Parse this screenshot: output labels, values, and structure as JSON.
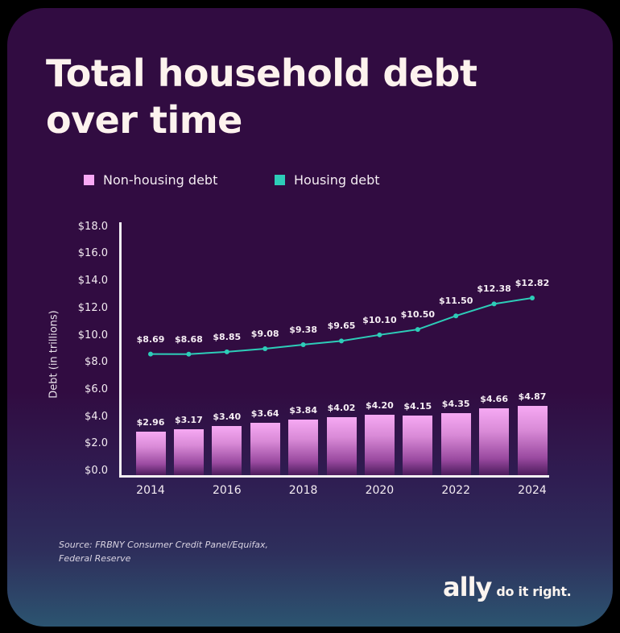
{
  "title_lines": [
    "Total household debt",
    "over time"
  ],
  "legend": [
    {
      "label": "Non-housing debt",
      "color": "#f8a9f4"
    },
    {
      "label": "Housing debt",
      "color": "#2dcdb8"
    }
  ],
  "y_axis_label": "Debt (in trillions)",
  "source_lines": [
    "Source: FRBNY Consumer Credit Panel/Equifax,",
    "Federal Reserve"
  ],
  "logo": {
    "brand": "ally",
    "tagline": "do it right."
  },
  "chart_data": {
    "type": "bar",
    "title": "Total household debt over time",
    "xlabel": "",
    "ylabel": "Debt (in trillions)",
    "ylim": [
      0,
      18
    ],
    "yticks": [
      "$0.0",
      "$2.0",
      "$4.0",
      "$6.0",
      "$8.0",
      "$10.0",
      "$12.0",
      "$14.0",
      "$16.0",
      "$18.0"
    ],
    "xticks": [
      "2014",
      "2016",
      "2018",
      "2020",
      "2022",
      "2024"
    ],
    "categories": [
      "2014",
      "2015",
      "2016",
      "2017",
      "2018",
      "2019",
      "2020",
      "2021",
      "2022",
      "2023",
      "2024"
    ],
    "grid": false,
    "legend_position": "top",
    "series": [
      {
        "name": "Non-housing debt",
        "type": "bar",
        "color": "#f8a9f4",
        "values": [
          2.96,
          3.17,
          3.4,
          3.64,
          3.84,
          4.02,
          4.2,
          4.15,
          4.35,
          4.66,
          4.87
        ],
        "labels": [
          "$2.96",
          "$3.17",
          "$3.40",
          "$3.64",
          "$3.84",
          "$4.02",
          "$4.20",
          "$4.15",
          "$4.35",
          "$4.66",
          "$4.87"
        ]
      },
      {
        "name": "Housing debt",
        "type": "line",
        "color": "#2dcdb8",
        "values": [
          8.69,
          8.68,
          8.85,
          9.08,
          9.38,
          9.65,
          10.1,
          10.5,
          11.5,
          12.38,
          12.82
        ],
        "labels": [
          "$8.69",
          "$8.68",
          "$8.85",
          "$9.08",
          "$9.38",
          "$9.65",
          "$10.10",
          "$10.50",
          "$11.50",
          "$12.38",
          "$12.82"
        ]
      }
    ]
  }
}
